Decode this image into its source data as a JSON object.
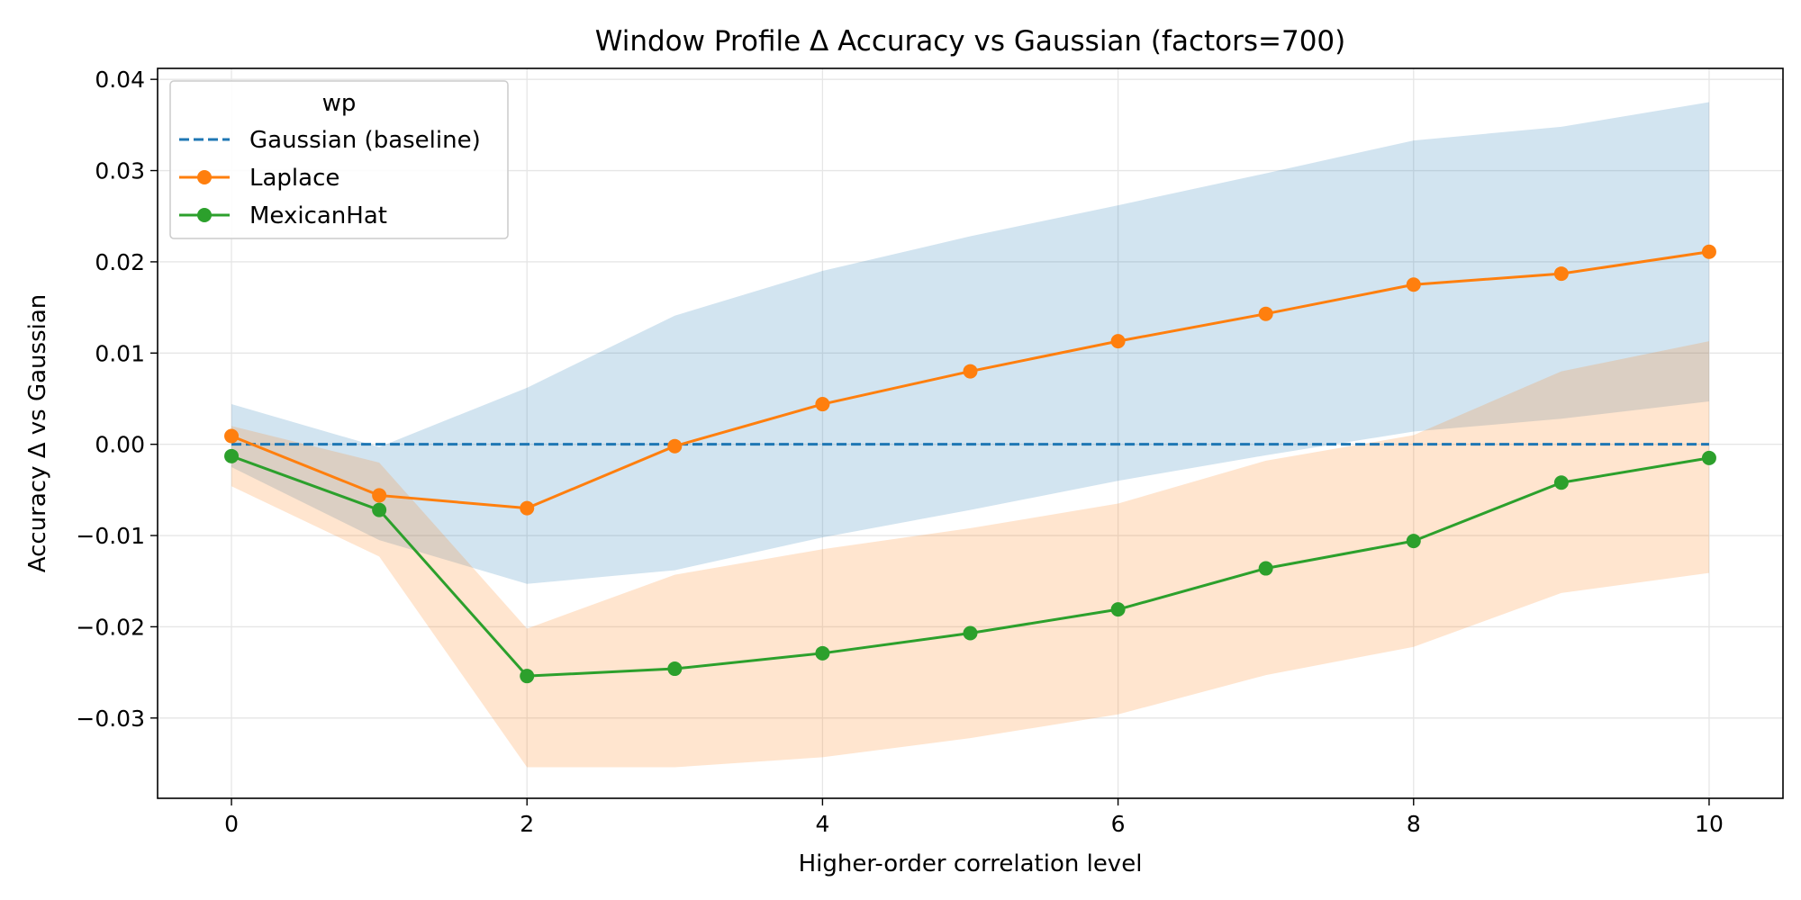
{
  "chart_data": {
    "type": "line",
    "title": "Window Profile Δ Accuracy vs Gaussian (factors=700)",
    "xlabel": "Higher-order correlation level",
    "ylabel": "Accuracy Δ vs Gaussian",
    "xlim": [
      -0.5,
      10.5
    ],
    "ylim": [
      -0.0388,
      0.0412
    ],
    "x": [
      0,
      1,
      2,
      3,
      4,
      5,
      6,
      7,
      8,
      9,
      10
    ],
    "xticks": [
      0,
      2,
      4,
      6,
      8,
      10
    ],
    "xtick_labels": [
      "0",
      "2",
      "4",
      "6",
      "8",
      "10"
    ],
    "yticks": [
      -0.03,
      -0.02,
      -0.01,
      0.0,
      0.01,
      0.02,
      0.03,
      0.04
    ],
    "ytick_labels": [
      "−0.03",
      "−0.02",
      "−0.01",
      "0.00",
      "0.01",
      "0.02",
      "0.03",
      "0.04"
    ],
    "grid": true,
    "legend": {
      "title": "wp",
      "placement": "upper-left"
    },
    "series": [
      {
        "name": "Gaussian (baseline)",
        "color": "#1f77b4",
        "style": "dashed",
        "marker": "none",
        "values": [
          0,
          0,
          0,
          0,
          0,
          0,
          0,
          0,
          0,
          0,
          0
        ]
      },
      {
        "name": "Laplace",
        "color": "#ff7f0e",
        "style": "solid",
        "marker": "circle",
        "values": [
          0.0009,
          -0.0056,
          -0.007,
          -0.0002,
          0.0044,
          0.008,
          0.0113,
          0.0143,
          0.0175,
          0.0187,
          0.0211
        ],
        "band_lower": [
          -0.0025,
          -0.0105,
          -0.0153,
          -0.0138,
          -0.0102,
          -0.0072,
          -0.004,
          -0.0012,
          0.0014,
          0.0028,
          0.0047
        ],
        "band_upper": [
          0.0044,
          -0.0003,
          0.0062,
          0.0141,
          0.019,
          0.0228,
          0.0262,
          0.0297,
          0.0333,
          0.0348,
          0.0375
        ],
        "band_color": "#1f77b4"
      },
      {
        "name": "MexicanHat",
        "color": "#2ca02c",
        "style": "solid",
        "marker": "circle",
        "values": [
          -0.0013,
          -0.0072,
          -0.0254,
          -0.0246,
          -0.0229,
          -0.0207,
          -0.0181,
          -0.0136,
          -0.0106,
          -0.0042,
          -0.0015
        ],
        "band_lower": [
          -0.0046,
          -0.0123,
          -0.0354,
          -0.0354,
          -0.0343,
          -0.0322,
          -0.0296,
          -0.0253,
          -0.0222,
          -0.0163,
          -0.0141
        ],
        "band_upper": [
          0.002,
          -0.002,
          -0.0202,
          -0.0143,
          -0.0115,
          -0.0092,
          -0.0065,
          -0.0018,
          0.001,
          0.008,
          0.0113
        ],
        "band_color": "#ff7f0e"
      }
    ]
  }
}
